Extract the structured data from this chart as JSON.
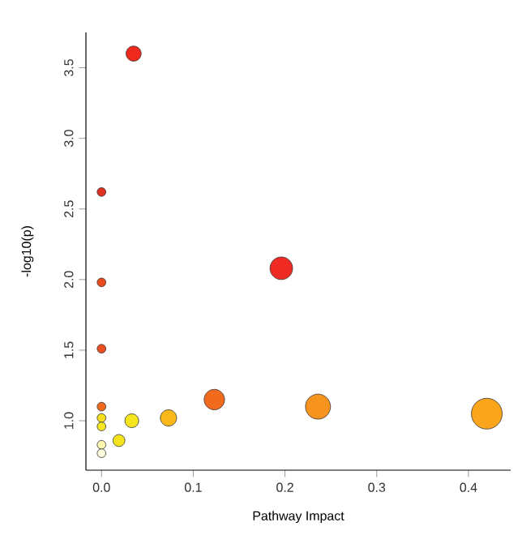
{
  "chart_data": {
    "type": "bubble",
    "xlabel": "Pathway Impact",
    "ylabel": "-log10(p)",
    "x": [
      0.035,
      0,
      0.196,
      0,
      0,
      0,
      0.123,
      0,
      0,
      0.073,
      0.033,
      0.236,
      0.42,
      0.019,
      0,
      0
    ],
    "values": [
      3.6,
      2.62,
      2.08,
      1.98,
      1.51,
      1.1,
      1.15,
      1.02,
      0.96,
      1.02,
      1.0,
      1.1,
      1.05,
      0.86,
      0.83,
      0.77
    ],
    "sizes": [
      0.24,
      0.08,
      0.54,
      0.08,
      0.08,
      0.08,
      0.44,
      0.08,
      0.08,
      0.28,
      0.2,
      0.66,
      1,
      0.15,
      0.08,
      0.08
    ],
    "colors": [
      "#ee2a1f",
      "#e03020",
      "#ee2a22",
      "#e84a1e",
      "#ec5020",
      "#f06a1e",
      "#f26a1e",
      "#f5e020",
      "#f5e61f",
      "#fbb81a",
      "#f5e41e",
      "#f7941e",
      "#fba51c",
      "#f3e41e",
      "#fff7b0",
      "#fffde0"
    ],
    "xlim": [
      -0.017,
      0.446
    ],
    "ylim": [
      0.65,
      3.75
    ],
    "xticks": [
      {
        "value": 0,
        "label": "0.0"
      },
      0.1,
      0.2,
      0.3,
      0.4
    ],
    "yticks": [
      {
        "value": 1,
        "label": "1.0"
      },
      1.5,
      {
        "value": 2,
        "label": "2.0"
      },
      2.5,
      {
        "value": 3,
        "label": "3.0"
      },
      3.5
    ]
  }
}
